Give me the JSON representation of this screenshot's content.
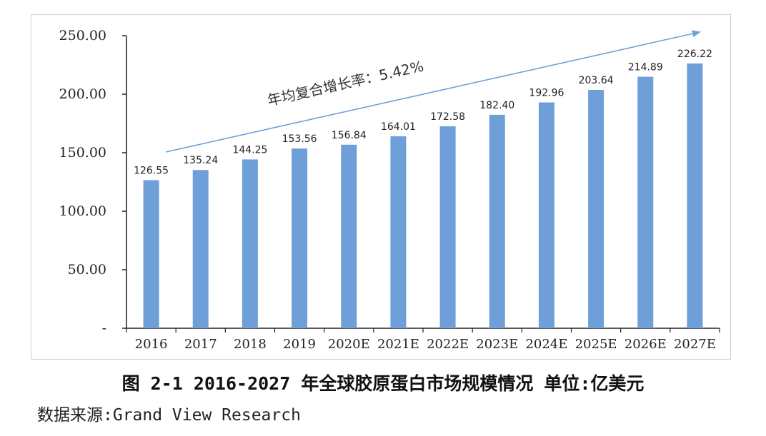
{
  "chart_data": {
    "type": "bar",
    "categories": [
      "2016",
      "2017",
      "2018",
      "2019",
      "2020E",
      "2021E",
      "2022E",
      "2023E",
      "2024E",
      "2025E",
      "2026E",
      "2027E"
    ],
    "values": [
      126.55,
      135.24,
      144.25,
      153.56,
      156.84,
      164.01,
      172.58,
      182.4,
      192.96,
      203.64,
      214.89,
      226.22
    ],
    "value_labels": [
      "126.55",
      "135.24",
      "144.25",
      "153.56",
      "156.84",
      "164.01",
      "172.58",
      "182.40",
      "192.96",
      "203.64",
      "214.89",
      "226.22"
    ],
    "yticks": [
      "-",
      "50.00",
      "100.00",
      "150.00",
      "200.00",
      "250.00"
    ],
    "ylim": [
      0,
      250
    ],
    "bar_color": "#6f9fd8",
    "annotation": "年均复合增长率：5.42%",
    "arrow_color": "#6f9fd8",
    "grid": false
  },
  "caption": "图 2-1 2016-2027 年全球胶原蛋白市场规模情况 单位:亿美元",
  "source": "数据来源:Grand View Research"
}
